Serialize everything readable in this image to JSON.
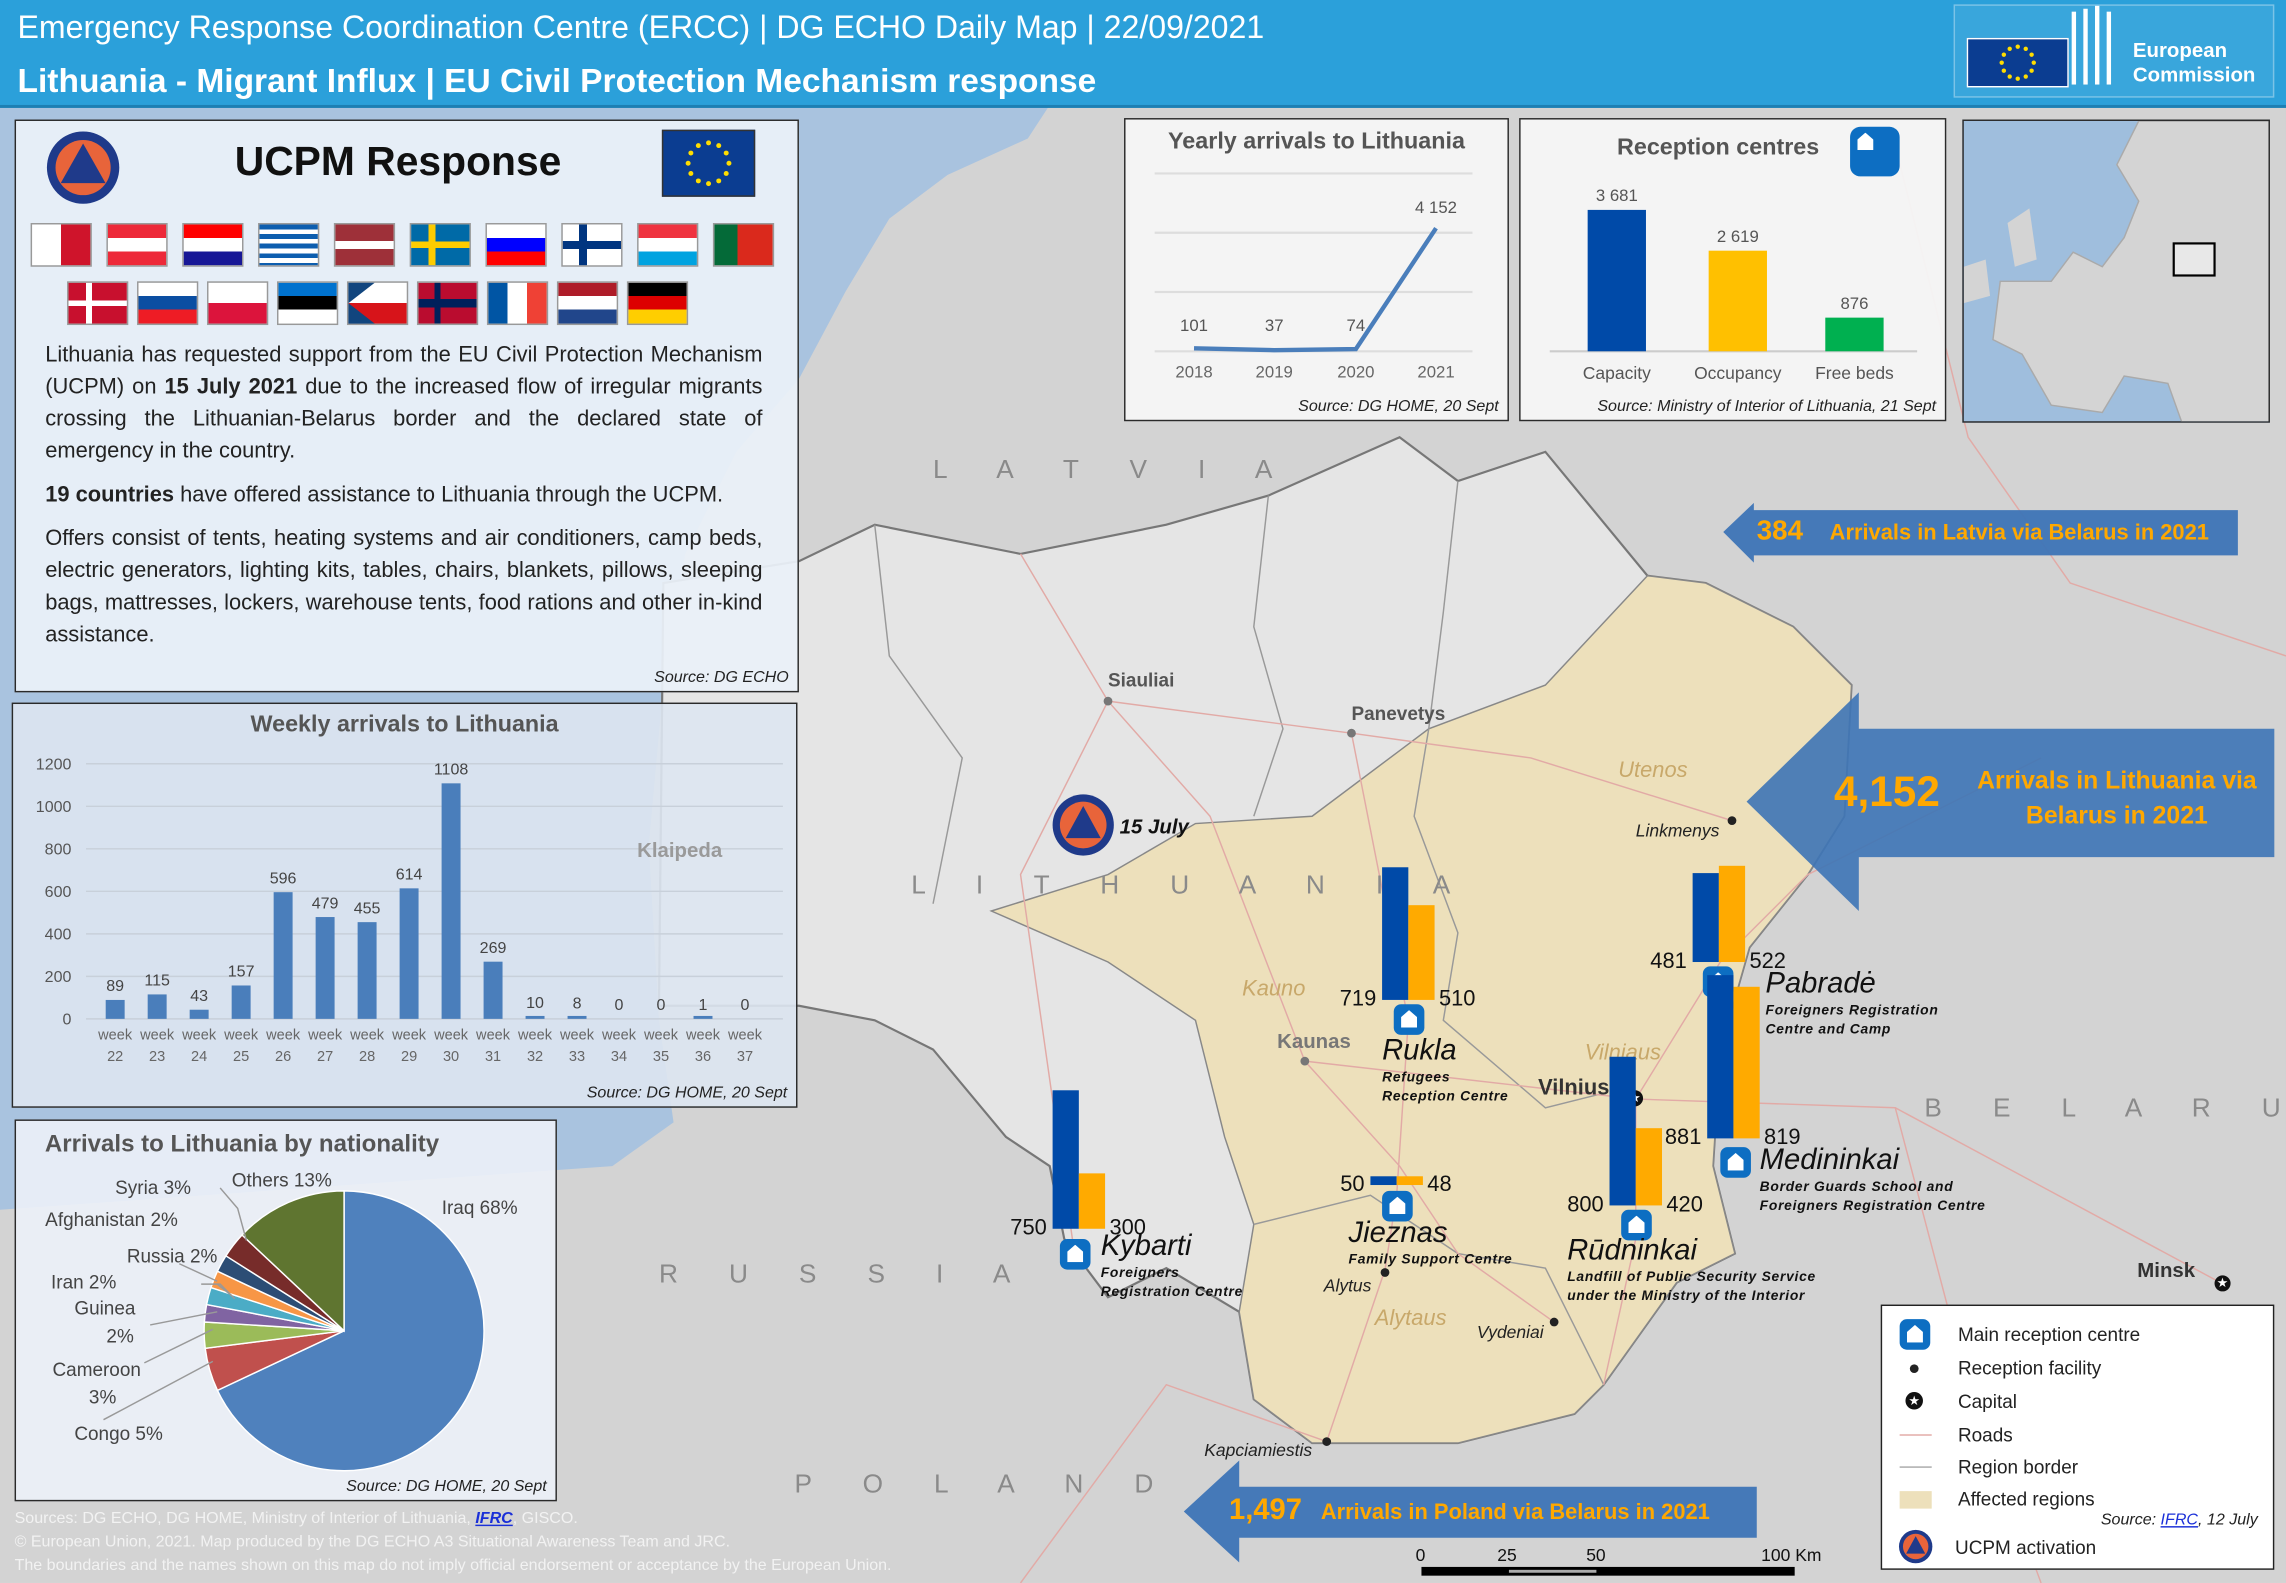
{
  "header": {
    "title": "Emergency Response Coordination Centre (ERCC)  | DG ECHO Daily Map | 22/09/2021",
    "subtitle": "Lithuania - Migrant Influx | EU Civil Protection Mechanism response",
    "logo_text": [
      "European",
      "Commission"
    ]
  },
  "ucpm": {
    "title": "UCPM Response",
    "flags": [
      "mt",
      "at",
      "hr",
      "gr",
      "lv",
      "se",
      "si",
      "fi",
      "lu",
      "pt",
      "dk",
      "sk",
      "pl",
      "ee",
      "cz",
      "no",
      "fr",
      "nl",
      "de"
    ],
    "p1_a": "Lithuania has requested support from the EU Civil Protection Mechanism (UCPM) on ",
    "p1_bold": "15 July 2021",
    "p1_b": " due to the increased flow of irregular migrants crossing the Lithuanian-Belarus border and the declared state of emergency in the country.",
    "p2_bold": "19 countries",
    "p2_b": " have offered assistance to Lithuania through the UCPM.",
    "p3": "Offers consist of tents, heating systems and air conditioners, camp beds, electric generators, lighting kits, tables, chairs, blankets, pillows, sleeping bags, mattresses, lockers, warehouse tents, food rations and other in-kind assistance.",
    "source": "Source: DG ECHO"
  },
  "chart_data": [
    {
      "type": "bar",
      "title": "Weekly arrivals to Lithuania",
      "categories": [
        "week 22",
        "week 23",
        "week 24",
        "week 25",
        "week 26",
        "week 27",
        "week 28",
        "week 29",
        "week 30",
        "week 31",
        "week 32",
        "week 33",
        "week 34",
        "week 35",
        "week 36",
        "week 37"
      ],
      "values": [
        89,
        115,
        43,
        157,
        596,
        479,
        455,
        614,
        1108,
        269,
        10,
        8,
        0,
        0,
        1,
        0
      ],
      "yticks": [
        0,
        200,
        400,
        600,
        800,
        1000,
        1200
      ],
      "ylim": [
        0,
        1200
      ],
      "source": "Source: DG HOME, 20 Sept"
    },
    {
      "type": "line",
      "title": "Yearly arrivals  to Lithuania",
      "categories": [
        "2018",
        "2019",
        "2020",
        "2021"
      ],
      "values": [
        101,
        37,
        74,
        4152
      ],
      "value_labels": [
        "101",
        "37",
        "74",
        "4 152"
      ],
      "ylim": [
        0,
        6000
      ],
      "source": "Source: DG HOME, 20 Sept"
    },
    {
      "type": "bar",
      "title": "Reception centres",
      "categories": [
        "Capacity",
        "Occupancy",
        "Free beds"
      ],
      "values": [
        3681,
        2619,
        876
      ],
      "value_labels": [
        "3 681",
        "2 619",
        "876"
      ],
      "colors": [
        "#004aa8",
        "#ffc000",
        "#00b050"
      ],
      "source": "Source: Ministry of Interior of Lithuania, 21 Sept"
    },
    {
      "type": "pie",
      "title": "Arrivals to Lithuania by nationality",
      "slices": [
        {
          "label": "Iraq 68%",
          "value": 68,
          "color": "#4f81bd"
        },
        {
          "label": "Congo 5%",
          "value": 5,
          "color": "#c0504d"
        },
        {
          "label": "Cameroon 3%",
          "value": 3,
          "color": "#9bbb59"
        },
        {
          "label": "Guinea 2%",
          "value": 2,
          "color": "#8064a2"
        },
        {
          "label": "Iran 2%",
          "value": 2,
          "color": "#4bacc6"
        },
        {
          "label": "Russia 2%",
          "value": 2,
          "color": "#f79646"
        },
        {
          "label": "Afghanistan 2%",
          "value": 2,
          "color": "#2c4d75"
        },
        {
          "label": "Syria 3%",
          "value": 3,
          "color": "#772c2a"
        },
        {
          "label": "Others 13%",
          "value": 13,
          "color": "#5f7530"
        }
      ],
      "source": "Source: DG HOME, 20 Sept"
    }
  ],
  "map": {
    "countries": [
      "L A T V I A",
      "L I T H U A N I A",
      "R U S S I A",
      "P O L A N D",
      "B E L A R U S"
    ],
    "cities": [
      "Siauliai",
      "Panevetys",
      "Kaunas",
      "Klaipeda",
      "Vilnius",
      "Minsk"
    ],
    "facility_towns": [
      "Linkmenys",
      "Alytus",
      "Vydeniai",
      "Kapciamiestis"
    ],
    "regions": [
      "Utenos",
      "Kauno",
      "Vilniaus",
      "Alytaus"
    ],
    "activation_label": "15 July",
    "facilities": [
      {
        "name": "Rukla",
        "desc": [
          "Refugees",
          "Reception  Centre"
        ],
        "capacity": 719,
        "occupancy": 510
      },
      {
        "name": "Pabradė",
        "desc": [
          "Foreigners  Registration",
          "Centre and Camp"
        ],
        "capacity": 481,
        "occupancy": 522
      },
      {
        "name": "Medininkai",
        "desc": [
          "Border Guards School and",
          "Foreigners  Registration Centre"
        ],
        "capacity": 881,
        "occupancy": 819
      },
      {
        "name": "Rūdninkai",
        "desc": [
          "Landfill  of Public Security Service",
          "under the Ministry of the Interior"
        ],
        "capacity": 800,
        "occupancy": 420
      },
      {
        "name": "Jieznas",
        "desc": [
          "Family Support Centre"
        ],
        "capacity": 50,
        "occupancy": 48
      },
      {
        "name": "Kybarti",
        "desc": [
          "Foreigners",
          "Registration  Centre"
        ],
        "capacity": 750,
        "occupancy": 300
      }
    ],
    "colors": {
      "capacity": "#004aa8",
      "occupancy": "#ffaa00",
      "affected": "#ede0bb",
      "arrow": "#3d74b6"
    },
    "arrows": {
      "latvia": {
        "count": "384",
        "text": "Arrivals in Latvia via Belarus in 2021"
      },
      "lithuania": {
        "count": "4,152",
        "text1": "Arrivals in Lithuania via",
        "text2": "Belarus in 2021"
      },
      "poland": {
        "count": "1,497",
        "text": "Arrivals in Poland  via Belarus in 2021"
      }
    },
    "scale": [
      "0",
      "25",
      "50",
      "100 Km"
    ]
  },
  "legend": {
    "items": [
      "Main reception  centre",
      "Reception facility",
      "Capital",
      "Roads",
      "Region border",
      "Affected regions",
      "UCPM activation"
    ],
    "source_prefix": "Source: ",
    "source_link": "IFRC",
    "source_suffix": ", 12 July"
  },
  "footer": {
    "sources_prefix": "Sources: DG ECHO,  DG HOME, Ministry of Interior of Lithuania,  ",
    "sources_link": "IFRC",
    "sources_suffix": ", GISCO.",
    "copyright": "© European Union, 2021. Map produced by the DG ECHO A3 Situational  Awareness Team and JRC.",
    "disclaimer": "The boundaries and the names shown on this map  do not imply official endorsement or acceptance by the European Union."
  }
}
